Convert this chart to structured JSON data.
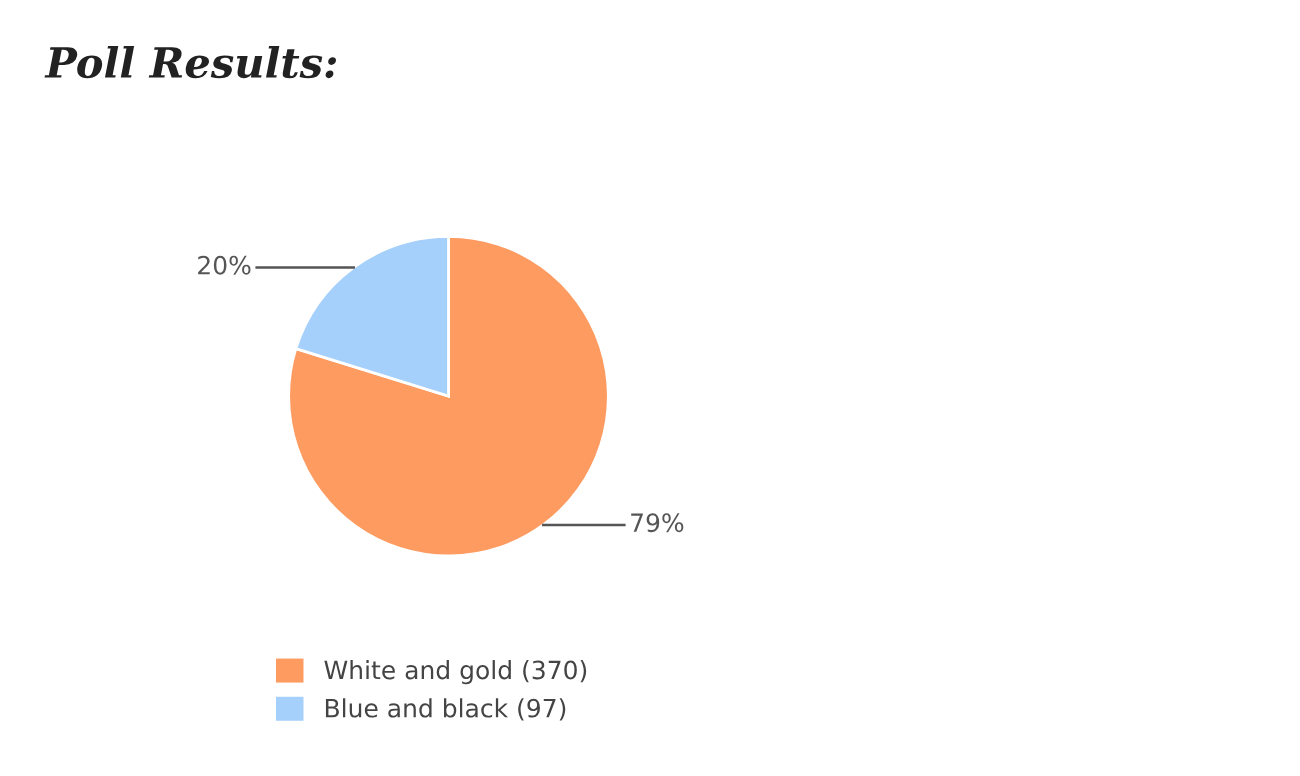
{
  "chart_data": {
    "type": "pie",
    "title": "Poll Results:",
    "categories": [
      "White and gold (370)",
      "Blue and black (97)"
    ],
    "values": [
      79,
      20
    ],
    "colors": [
      "#fe9b60",
      "#a5d0fc"
    ],
    "value_labels": [
      "79%",
      "20%"
    ],
    "legend": "bottom left"
  }
}
